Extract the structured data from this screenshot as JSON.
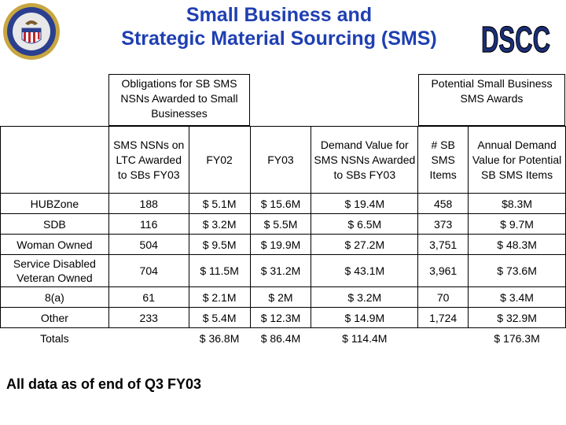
{
  "title_line1": "Small Business and",
  "title_line2": "Strategic Material Sourcing (SMS)",
  "logo_text": "DSCC",
  "group_left": "Obligations for SB SMS NSNs Awarded to Small Businesses",
  "group_right": "Potential Small Business SMS Awards",
  "columns": [
    "SMS NSNs on LTC Awarded to SBs FY03",
    "FY02",
    "FY03",
    "Demand Value for SMS NSNs Awarded to SBs FY03",
    "# SB SMS Items",
    "Annual Demand Value for Potential SB SMS Items"
  ],
  "rows": [
    {
      "label": "HUBZone",
      "c1": "188",
      "c2": "$ 5.1M",
      "c3": "$ 15.6M",
      "c4": "$ 19.4M",
      "c5": "458",
      "c6": "$8.3M"
    },
    {
      "label": "SDB",
      "c1": "116",
      "c2": "$ 3.2M",
      "c3": "$ 5.5M",
      "c4": "$ 6.5M",
      "c5": "373",
      "c6": "$ 9.7M"
    },
    {
      "label": "Woman Owned",
      "c1": "504",
      "c2": "$ 9.5M",
      "c3": "$ 19.9M",
      "c4": "$ 27.2M",
      "c5": "3,751",
      "c6": "$ 48.3M"
    },
    {
      "label": "Service Disabled Veteran Owned",
      "c1": "704",
      "c2": "$ 11.5M",
      "c3": "$ 31.2M",
      "c4": "$ 43.1M",
      "c5": "3,961",
      "c6": "$ 73.6M"
    },
    {
      "label": "8(a)",
      "c1": "61",
      "c2": "$ 2.1M",
      "c3": "$ 2M",
      "c4": "$ 3.2M",
      "c5": "70",
      "c6": "$ 3.4M"
    },
    {
      "label": "Other",
      "c1": "233",
      "c2": "$ 5.4M",
      "c3": "$ 12.3M",
      "c4": "$ 14.9M",
      "c5": "1,724",
      "c6": "$ 32.9M"
    }
  ],
  "totals": {
    "label": "Totals",
    "c1": "",
    "c2": "$ 36.8M",
    "c3": "$ 86.4M",
    "c4": "$ 114.4M",
    "c5": "",
    "c6": "$ 176.3M"
  },
  "footnote": "All data as of end of Q3 FY03",
  "colors": {
    "title": "#1f3fb2",
    "seal_blue": "#2a3f8f",
    "seal_gold": "#c8a640",
    "logo_blue": "#1a2f7a"
  }
}
